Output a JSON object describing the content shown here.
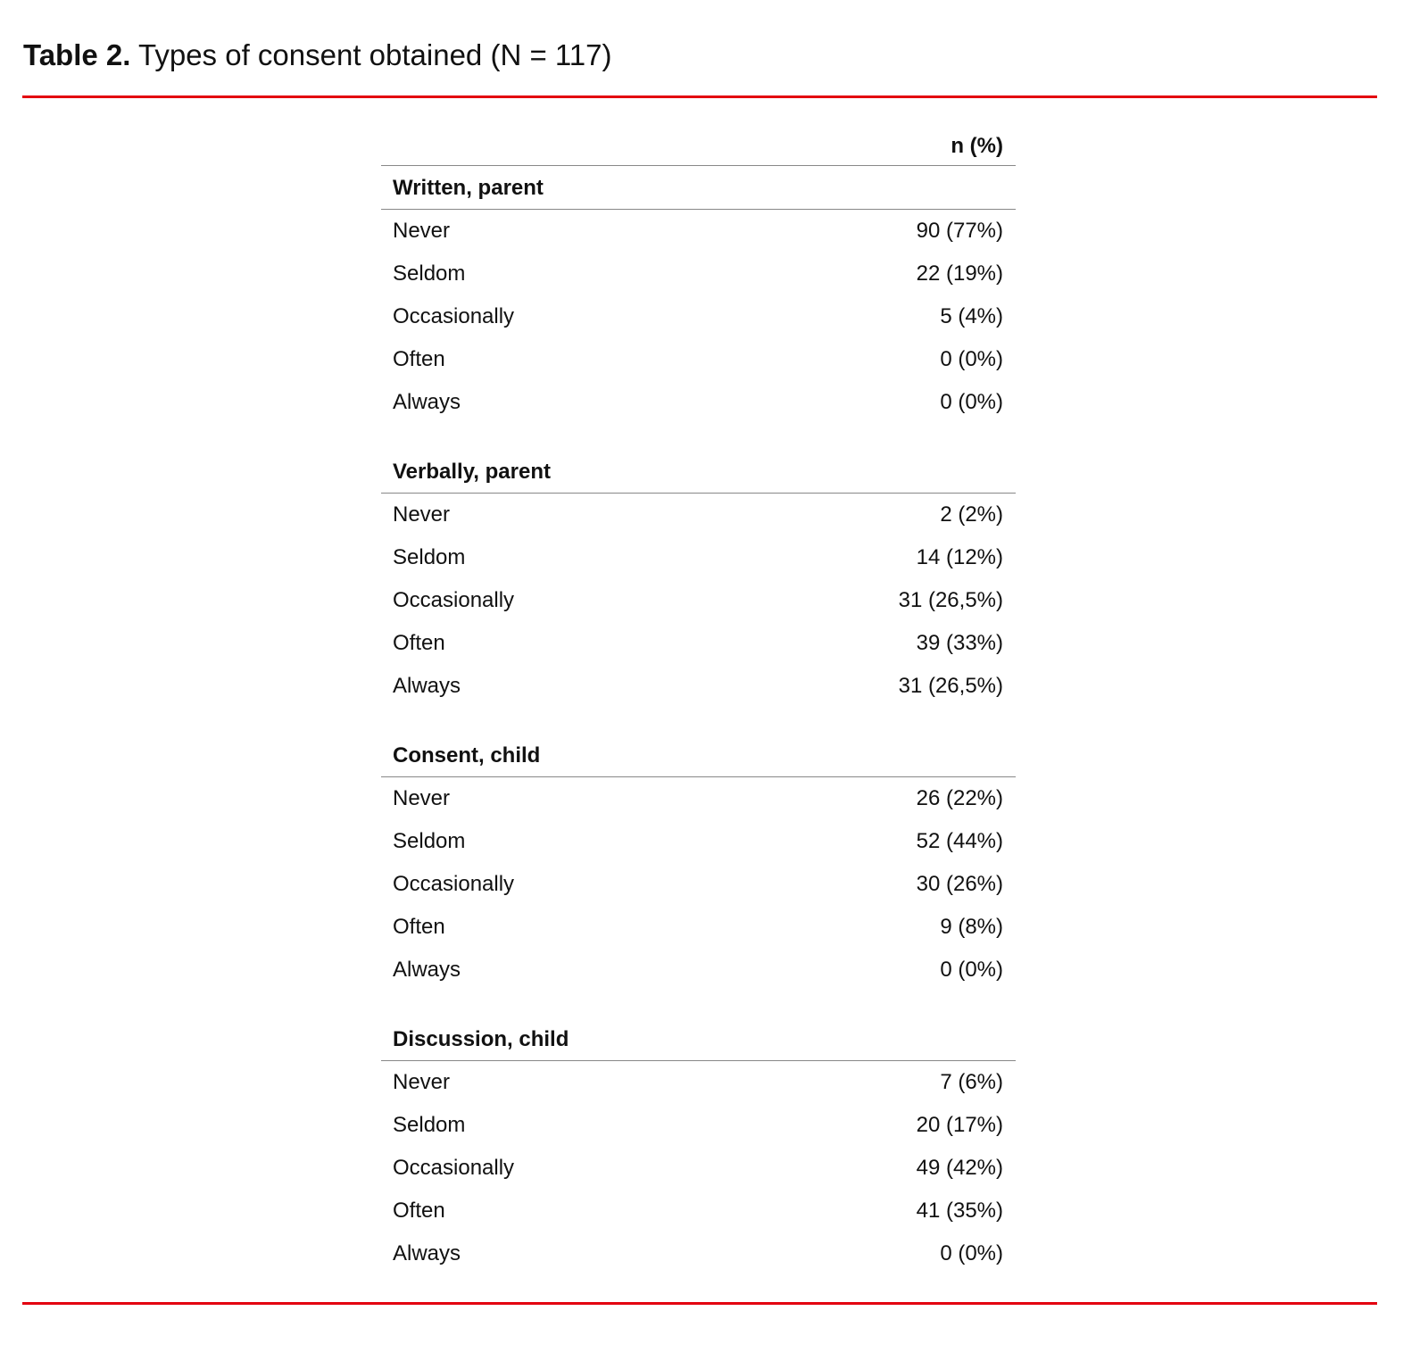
{
  "title": {
    "label": "Table 2.",
    "text": "Types of consent obtained (N = 117)"
  },
  "colors": {
    "rule": "#e3000f",
    "divider": "#888888"
  },
  "table": {
    "column_header": "n (%)",
    "groups": [
      {
        "name": "Written, parent",
        "rows": [
          {
            "label": "Never",
            "value": "90 (77%)"
          },
          {
            "label": "Seldom",
            "value": "22 (19%)"
          },
          {
            "label": "Occasionally",
            "value": "5 (4%)"
          },
          {
            "label": "Often",
            "value": "0 (0%)"
          },
          {
            "label": "Always",
            "value": "0 (0%)"
          }
        ]
      },
      {
        "name": "Verbally, parent",
        "rows": [
          {
            "label": "Never",
            "value": "2 (2%)"
          },
          {
            "label": "Seldom",
            "value": "14 (12%)"
          },
          {
            "label": "Occasionally",
            "value": "31 (26,5%)"
          },
          {
            "label": "Often",
            "value": "39 (33%)"
          },
          {
            "label": "Always",
            "value": "31 (26,5%)"
          }
        ]
      },
      {
        "name": "Consent, child",
        "rows": [
          {
            "label": "Never",
            "value": "26 (22%)"
          },
          {
            "label": "Seldom",
            "value": "52 (44%)"
          },
          {
            "label": "Occasionally",
            "value": "30 (26%)"
          },
          {
            "label": "Often",
            "value": "9 (8%)"
          },
          {
            "label": "Always",
            "value": "0 (0%)"
          }
        ]
      },
      {
        "name": "Discussion, child",
        "rows": [
          {
            "label": "Never",
            "value": "7 (6%)"
          },
          {
            "label": "Seldom",
            "value": "20 (17%)"
          },
          {
            "label": "Occasionally",
            "value": "49 (42%)"
          },
          {
            "label": "Often",
            "value": "41 (35%)"
          },
          {
            "label": "Always",
            "value": "0 (0%)"
          }
        ]
      }
    ]
  }
}
